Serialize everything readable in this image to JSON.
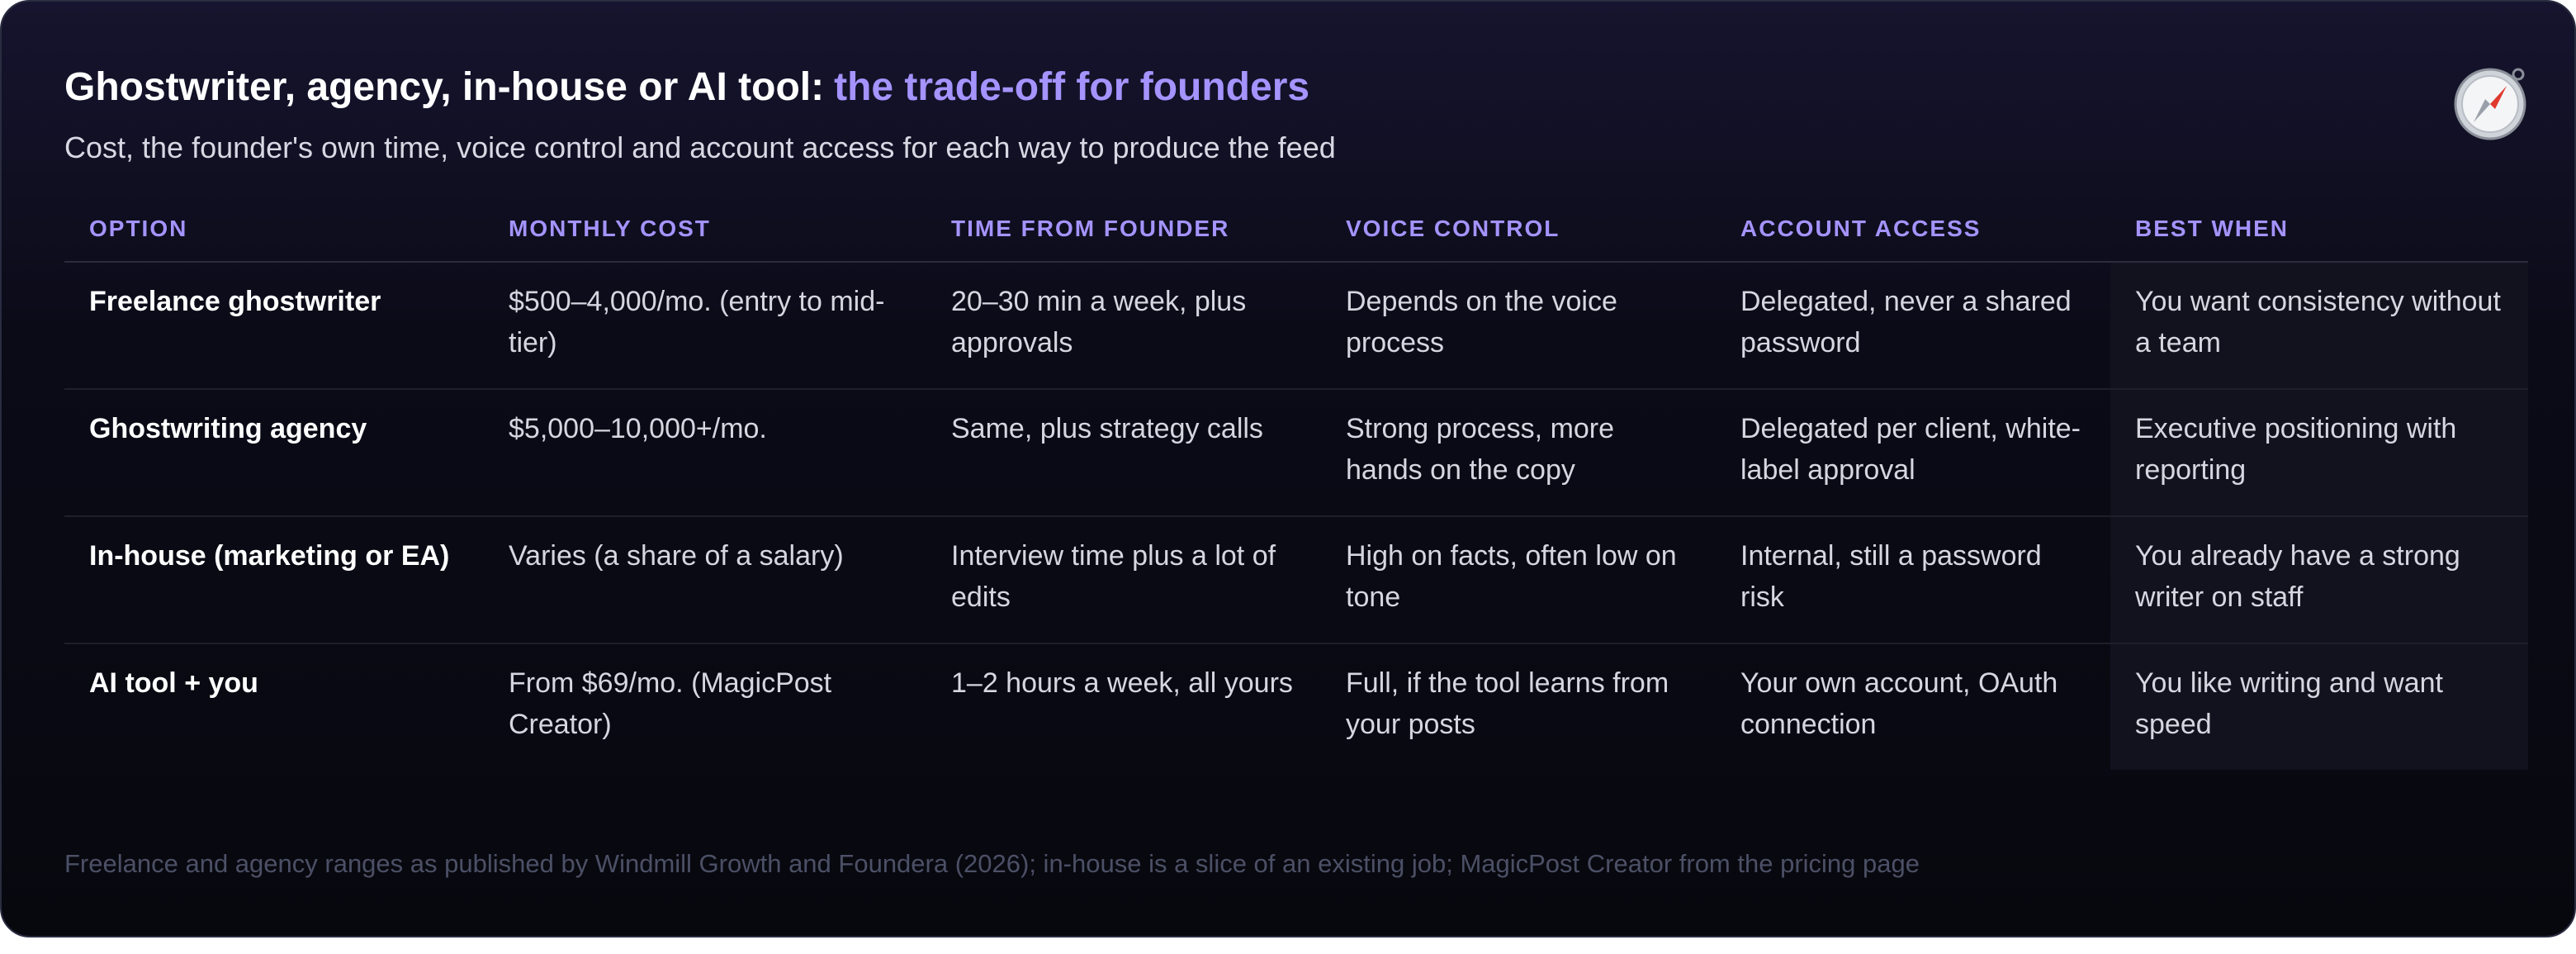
{
  "header": {
    "title": "Ghostwriter, agency, in-house or AI tool:",
    "title_highlight": "the trade-off for founders",
    "subtitle": "Cost, the founder's own time, voice control and account access for each way to produce the feed"
  },
  "table": {
    "columns": [
      "OPTION",
      "MONTHLY COST",
      "TIME FROM FOUNDER",
      "VOICE CONTROL",
      "ACCOUNT ACCESS",
      "BEST WHEN"
    ],
    "rows": [
      [
        "Freelance ghostwriter",
        "$500–4,000/mo. (entry to mid-tier)",
        "20–30 min a week, plus approvals",
        "Depends on the voice process",
        "Delegated, never a shared password",
        "You want consistency without a team"
      ],
      [
        "Ghostwriting agency",
        "$5,000–10,000+/mo.",
        "Same, plus strategy calls",
        "Strong process, more hands on the copy",
        "Delegated per client, white-label approval",
        "Executive positioning with reporting"
      ],
      [
        "In-house (marketing or EA)",
        "Varies (a share of a salary)",
        "Interview time plus a lot of edits",
        "High on facts, often low on tone",
        "Internal, still a password risk",
        "You already have a strong writer on staff"
      ],
      [
        "AI tool + you",
        "From $69/mo. (MagicPost Creator)",
        "1–2 hours a week, all yours",
        "Full, if the tool learns from your posts",
        "Your own account, OAuth connection",
        "You like writing and want speed"
      ]
    ]
  },
  "footnote": "Freelance and agency ranges as published by Windmill Growth and Foundera (2026); in-house is a slice of an existing job; MagicPost Creator from the pricing page"
}
